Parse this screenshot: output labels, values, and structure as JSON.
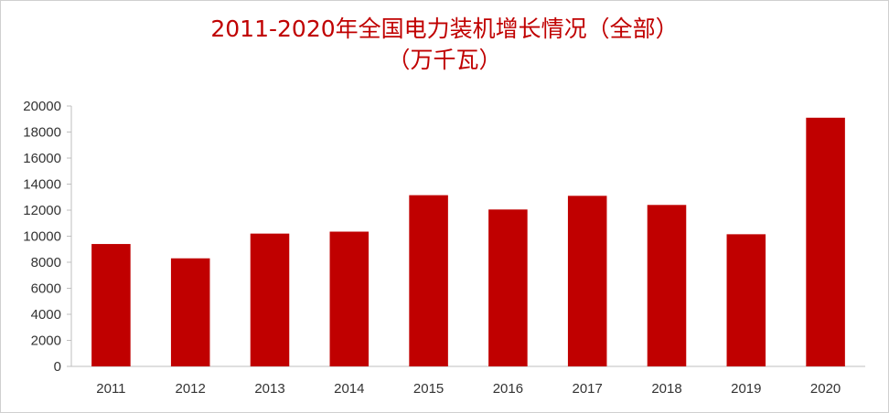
{
  "chart_data": {
    "type": "bar",
    "title": "2011-2020年全国电力装机增长情况（全部）",
    "subtitle": "（万千瓦）",
    "xlabel": "",
    "ylabel": "",
    "categories": [
      "2011",
      "2012",
      "2013",
      "2014",
      "2015",
      "2016",
      "2017",
      "2018",
      "2019",
      "2020"
    ],
    "values": [
      9400,
      8300,
      10200,
      10350,
      13150,
      12050,
      13100,
      12400,
      10150,
      19100
    ],
    "ylim": [
      0,
      20000
    ],
    "yticks": [
      "0",
      "2000",
      "4000",
      "6000",
      "8000",
      "10000",
      "12000",
      "14000",
      "16000",
      "18000",
      "20000"
    ],
    "grid": false,
    "legend": "none",
    "bar_color": "#c00000"
  }
}
